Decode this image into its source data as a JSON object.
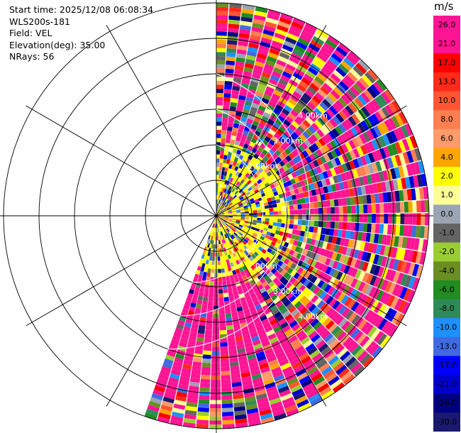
{
  "info": {
    "start_time": "Start time: 2025/12/08 06:08:34",
    "instrument": "WLS200s-181",
    "field": "Field: VEL",
    "elevation": "Elevation(deg): 35.00",
    "nrays": "NRays: 56"
  },
  "colorbar": {
    "unit": "m/s",
    "labels": [
      "26.0",
      "21.0",
      "17.0",
      "13.0",
      "10.0",
      "8.0",
      "6.0",
      "4.0",
      "2.0",
      "1.0",
      "0.0",
      "-1.0",
      "-2.0",
      "-4.0",
      "-6.0",
      "-8.0",
      "-10.0",
      "-13.0",
      "-17.0",
      "-21.0",
      "-26.0",
      "-30.0"
    ],
    "colors": [
      "#ff1493",
      "#ff1493",
      "#ff0000",
      "#ff2a1a",
      "#ff5533",
      "#ff7f50",
      "#ff9a6a",
      "#ffa500",
      "#ffff00",
      "#ffff99",
      "#9aa4b2",
      "#646464",
      "#9acd32",
      "#6b8e23",
      "#228b22",
      "#2e8b57",
      "#1e90ff",
      "#4169e1",
      "#0000ff",
      "#0000cd",
      "#000080",
      "#191970"
    ]
  },
  "chart_data": {
    "type": "ppi_polar",
    "field": "VEL",
    "unit": "m/s",
    "elevation_deg": 35.0,
    "n_rays": 56,
    "azimuth_range_deg": [
      0,
      200
    ],
    "range_km": [
      0,
      6.0
    ],
    "range_ring_labels": [
      "2.00km",
      "3.00km",
      "4.00km"
    ],
    "ring_spacing_km": 1.0,
    "radial_spokes_deg": [
      0,
      30,
      60,
      90,
      120,
      150,
      180,
      210,
      240,
      270,
      300,
      330
    ],
    "color_scale": {
      "boundaries": [
        26.0,
        21.0,
        17.0,
        13.0,
        10.0,
        8.0,
        6.0,
        4.0,
        2.0,
        1.0,
        0.0,
        -1.0,
        -2.0,
        -4.0,
        -6.0,
        -8.0,
        -10.0,
        -13.0,
        -17.0,
        -21.0,
        -26.0,
        -30.0
      ]
    },
    "dominant_value_region": {
      "azimuth_deg": [
        150,
        200
      ],
      "value_ms": 26.0
    }
  }
}
